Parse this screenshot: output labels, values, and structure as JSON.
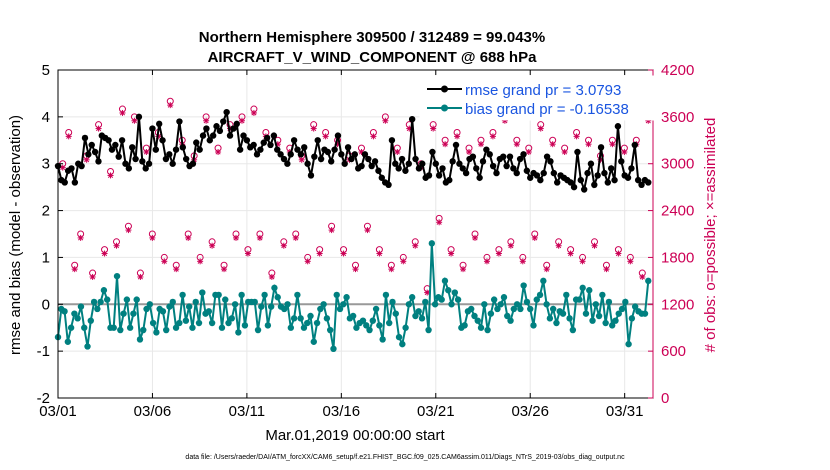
{
  "chart_data": {
    "type": "line",
    "title_line1": "Northern Hemisphere 309500 / 312489 = 99.043%",
    "title_line2": "AIRCRAFT_V_WIND_COMPONENT @ 688 hPa",
    "xlabel": "Mar.01,2019 00:00:00 start",
    "ylabel_left": "rmse and bias (model - observation)",
    "ylabel_right": "# of obs: o=possible; ×=assimilated",
    "xlim": [
      0,
      31.5
    ],
    "ylim_left": [
      -2,
      5
    ],
    "ylim_right": [
      0,
      4200
    ],
    "x_ticks": [
      0,
      5,
      10,
      15,
      20,
      25,
      30
    ],
    "x_tick_labels": [
      "03/01",
      "03/06",
      "03/11",
      "03/16",
      "03/21",
      "03/26",
      "03/31"
    ],
    "y_left_ticks": [
      -2,
      -1,
      0,
      1,
      2,
      3,
      4,
      5
    ],
    "y_left_tick_labels": [
      "-2",
      "-1",
      "0",
      "1",
      "2",
      "3",
      "4",
      "5"
    ],
    "y_right_ticks": [
      0,
      600,
      1200,
      1800,
      2400,
      3000,
      3600,
      4200
    ],
    "y_right_tick_labels": [
      "0",
      "600",
      "1200",
      "1800",
      "2400",
      "3000",
      "3600",
      "4200"
    ],
    "legend": {
      "rmse": "rmse grand pr = 3.0793",
      "bias": "bias grand pr = -0.16538"
    },
    "footnote": "data file: /Users/raeder/DAI/ATM_forcXX/CAM6_setup/f.e21.FHIST_BGC.f09_025.CAM6assim.011/Diags_NTrS_2019-03/obs_diag_output.nc",
    "series": [
      {
        "name": "rmse",
        "color": "#000000",
        "y": [
          2.95,
          2.65,
          2.6,
          2.85,
          2.9,
          2.6,
          3.0,
          2.95,
          3.55,
          3.2,
          3.4,
          3.25,
          3.05,
          3.6,
          3.55,
          3.5,
          3.3,
          3.4,
          3.15,
          3.5,
          3.0,
          2.9,
          3.35,
          3.1,
          4.0,
          3.05,
          2.9,
          3.0,
          3.75,
          3.3,
          3.85,
          3.5,
          3.1,
          3.2,
          3.0,
          3.3,
          3.9,
          3.35,
          3.1,
          2.95,
          3.0,
          3.45,
          3.3,
          3.6,
          3.75,
          3.5,
          3.6,
          3.8,
          3.7,
          3.9,
          4.1,
          3.6,
          3.75,
          3.85,
          3.3,
          3.6,
          3.5,
          3.35,
          3.4,
          3.2,
          3.3,
          3.45,
          3.55,
          3.4,
          3.6,
          3.3,
          3.2,
          3.1,
          3.0,
          3.2,
          3.5,
          3.3,
          3.2,
          3.35,
          3.0,
          2.75,
          3.15,
          3.5,
          3.1,
          3.3,
          3.25,
          3.05,
          3.3,
          3.6,
          3.2,
          3.0,
          3.35,
          3.1,
          3.2,
          2.9,
          2.95,
          3.2,
          3.1,
          2.95,
          3.05,
          2.85,
          2.7,
          2.6,
          2.55,
          3.5,
          3.0,
          2.9,
          3.1,
          2.85,
          3.0,
          3.95,
          3.1,
          2.9,
          3.0,
          2.7,
          2.75,
          3.25,
          3.0,
          2.75,
          2.9,
          2.6,
          2.65,
          3.05,
          3.4,
          3.0,
          2.9,
          2.8,
          3.1,
          3.15,
          2.9,
          2.7,
          3.05,
          3.3,
          3.2,
          2.95,
          2.8,
          3.1,
          3.15,
          2.95,
          3.15,
          2.9,
          2.8,
          3.1,
          3.2,
          2.85,
          2.7,
          2.8,
          2.75,
          2.65,
          2.8,
          3.15,
          3.05,
          2.8,
          2.6,
          2.75,
          2.7,
          2.65,
          2.6,
          2.5,
          3.25,
          2.65,
          2.45,
          2.8,
          3.0,
          2.55,
          2.75,
          3.35,
          2.8,
          2.6,
          2.9,
          2.65,
          3.8,
          3.05,
          2.75,
          2.7,
          2.9,
          3.4,
          2.65,
          2.55,
          2.65,
          2.6
        ]
      },
      {
        "name": "bias",
        "color": "#008080",
        "y": [
          -0.7,
          -0.1,
          -0.15,
          -0.8,
          -0.5,
          -0.2,
          -0.3,
          -0.05,
          -0.5,
          -0.9,
          -0.35,
          0.05,
          -0.1,
          0.05,
          0.3,
          0.1,
          -0.5,
          -0.5,
          0.6,
          -0.55,
          -0.2,
          0.1,
          -0.5,
          -0.2,
          0.1,
          -0.75,
          -0.55,
          -0.1,
          0.0,
          -0.4,
          -0.6,
          -0.1,
          -0.15,
          -0.55,
          -0.05,
          0.05,
          -0.5,
          -0.4,
          0.2,
          -0.35,
          -0.05,
          -0.5,
          0.05,
          -0.4,
          0.25,
          -0.2,
          -0.15,
          -0.4,
          0.2,
          0.2,
          -0.5,
          0.1,
          -0.4,
          -0.3,
          0.0,
          -0.6,
          0.2,
          -0.45,
          0.05,
          0.05,
          0.05,
          -0.55,
          -0.05,
          0.2,
          -0.45,
          -0.05,
          0.35,
          0.15,
          -0.05,
          -0.1,
          0.0,
          -0.5,
          -0.3,
          0.2,
          -0.3,
          -0.5,
          -0.4,
          -0.25,
          -0.8,
          -0.4,
          -0.1,
          0.0,
          -0.3,
          -0.55,
          -0.95,
          0.2,
          -0.1,
          0.0,
          0.15,
          -0.3,
          -0.25,
          -0.5,
          -0.4,
          -0.35,
          -0.45,
          -0.55,
          -0.35,
          -0.1,
          -0.45,
          -0.75,
          0.2,
          -0.4,
          0.05,
          -0.2,
          -0.7,
          -0.85,
          -0.5,
          0.0,
          0.15,
          -0.25,
          -0.15,
          -0.3,
          0.05,
          -0.55,
          1.3,
          0.0,
          0.15,
          0.1,
          0.5,
          0.3,
          0.0,
          0.25,
          0.1,
          -0.5,
          -0.45,
          -0.15,
          -0.1,
          -0.25,
          -0.35,
          -0.5,
          0.0,
          -0.55,
          -0.2,
          0.1,
          -0.1,
          0.0,
          0.15,
          -0.25,
          -0.35,
          -0.1,
          0.0,
          -0.1,
          0.4,
          0.05,
          -0.1,
          -0.45,
          0.1,
          0.2,
          0.5,
          0.0,
          -0.3,
          -0.1,
          -0.4,
          -0.15,
          -0.2,
          0.2,
          -0.3,
          -0.55,
          0.1,
          0.1,
          0.35,
          -0.2,
          0.3,
          -0.35,
          0.0,
          -0.25,
          0.2,
          -0.4,
          0.05,
          -0.45,
          -0.35,
          -0.2,
          -0.1,
          0.05,
          -0.85,
          -0.3,
          -0.05,
          -0.15,
          -0.2,
          -0.2,
          0.5
        ]
      }
    ],
    "obs_counts": {
      "possible": [
        3000,
        3400,
        1700,
        2100,
        3100,
        1600,
        3500,
        1900,
        2900,
        2000,
        3700,
        2200,
        3600,
        1600,
        3200,
        2100,
        3400,
        1800,
        3800,
        1700,
        3300,
        2100,
        3100,
        1800,
        3600,
        2000,
        3200,
        1700,
        3500,
        2100,
        3600,
        1900,
        3700,
        2100,
        3400,
        1600,
        3300,
        2000,
        3200,
        2100,
        3100,
        1800,
        3500,
        1900,
        3400,
        2200,
        3300,
        1900,
        3100,
        1700,
        3200,
        2200,
        3400,
        1900,
        3600,
        1700,
        3200,
        1800,
        3500,
        2000,
        3000,
        1400,
        3500,
        2300,
        3300,
        1900,
        3400,
        1700,
        3200,
        2100,
        3300,
        1800,
        3400,
        1900,
        3600,
        2000,
        3300,
        1800,
        3200,
        2100,
        3500,
        1700,
        3300,
        2000,
        3200,
        1900,
        3400,
        1800,
        3300,
        2000,
        3100,
        1700,
        3300,
        1900,
        3200,
        1800,
        3300,
        1600,
        3600
      ],
      "assimilated": [
        2950,
        3350,
        1650,
        2050,
        3050,
        1550,
        3450,
        1850,
        2850,
        1950,
        3650,
        2150,
        3550,
        1550,
        3150,
        2050,
        3350,
        1750,
        3750,
        1650,
        3250,
        2050,
        3050,
        1750,
        3550,
        1950,
        3150,
        1650,
        3450,
        2050,
        3550,
        1850,
        3650,
        2050,
        3350,
        1550,
        3250,
        1950,
        3150,
        2050,
        3050,
        1750,
        3450,
        1850,
        3350,
        2150,
        3250,
        1850,
        3050,
        1650,
        3150,
        2150,
        3350,
        1850,
        3550,
        1650,
        3150,
        1750,
        3450,
        1950,
        2950,
        1350,
        3450,
        2250,
        3250,
        1850,
        3350,
        1650,
        3150,
        2050,
        3250,
        1750,
        3350,
        1850,
        3550,
        1950,
        3250,
        1750,
        3150,
        2050,
        3450,
        1650,
        3250,
        1950,
        3150,
        1850,
        3350,
        1750,
        3250,
        1950,
        3050,
        1650,
        3250,
        1850,
        3150,
        1750,
        3250,
        1550,
        3550
      ]
    },
    "colors": {
      "rmse": "#000000",
      "bias": "#008080",
      "obs": "#cc0055",
      "legend_text": "#1a55e0",
      "zero_line": "#999999"
    }
  }
}
